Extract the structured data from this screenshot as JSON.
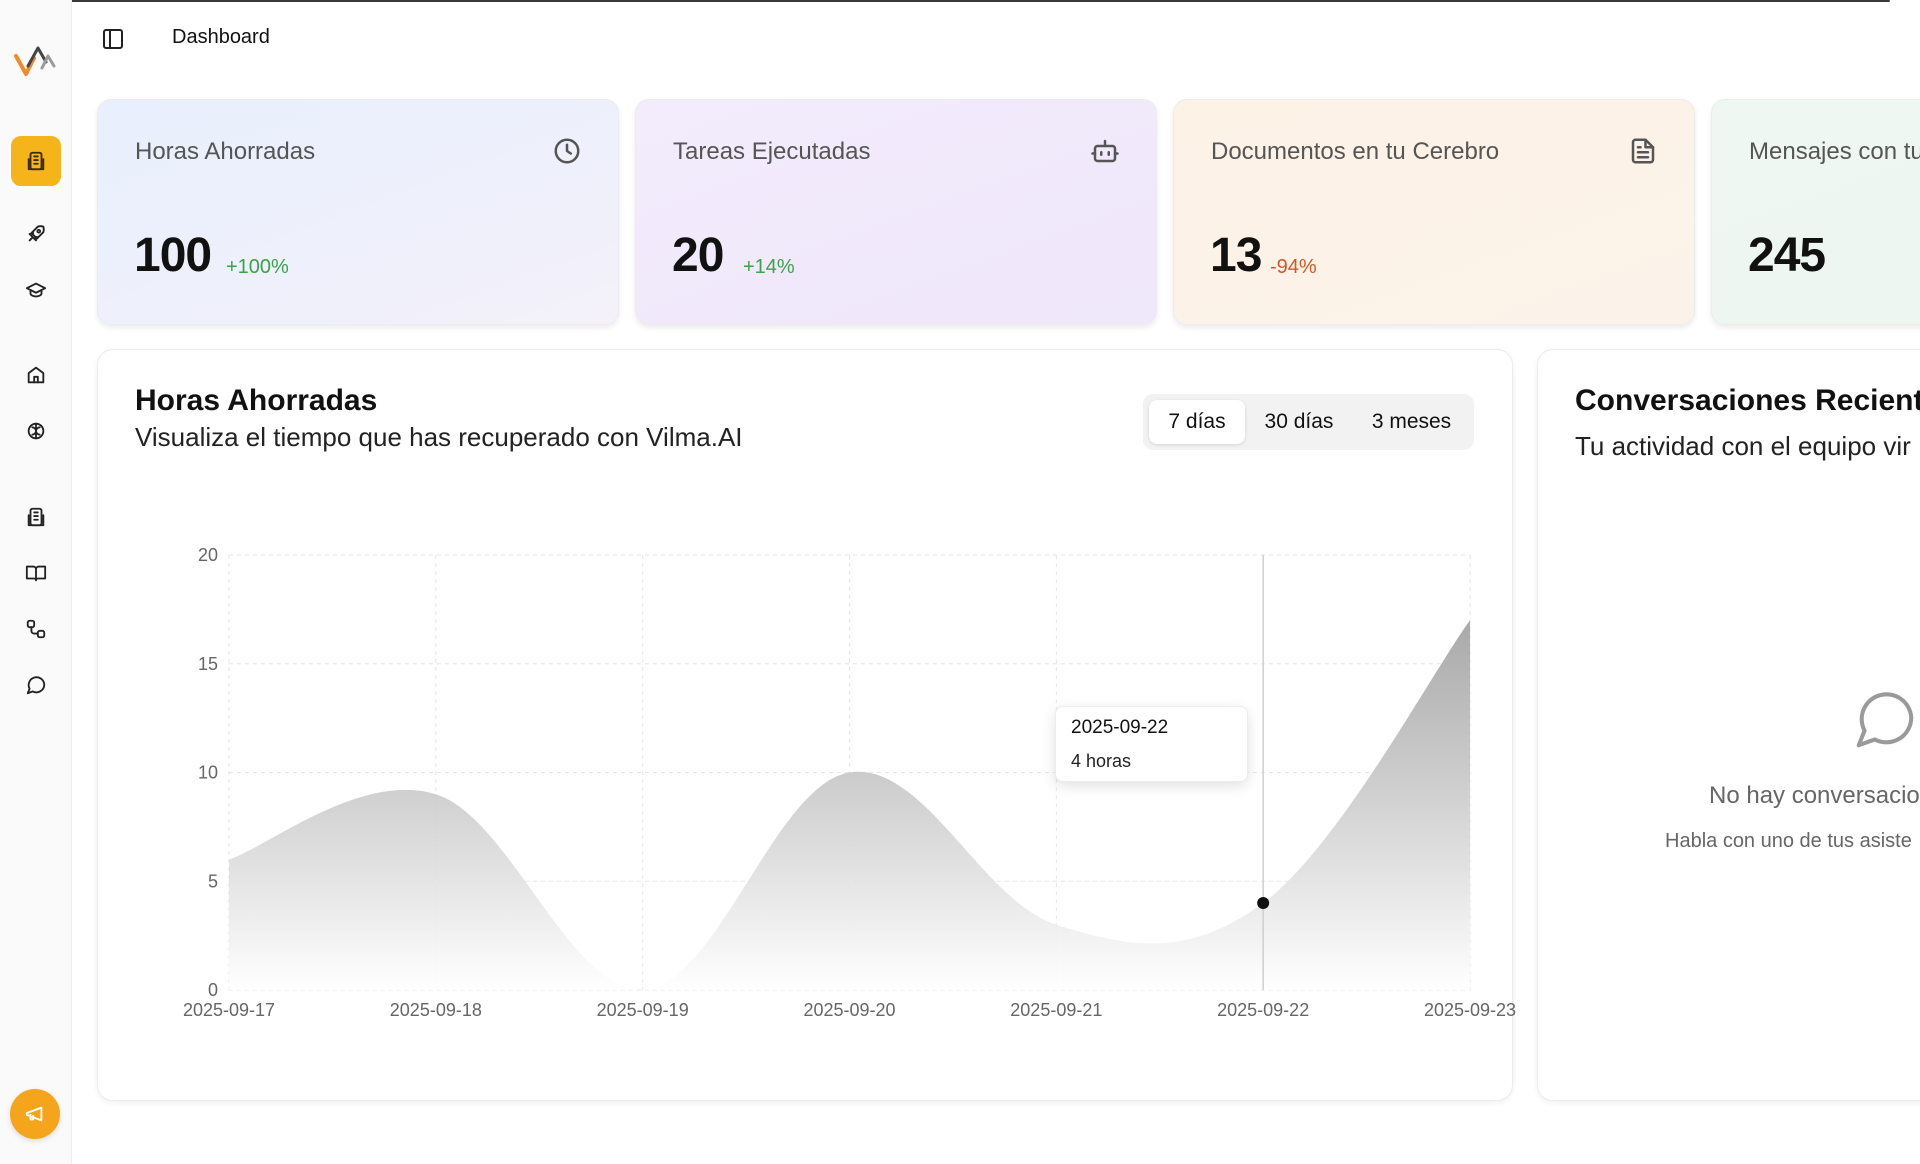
{
  "header": {
    "title": "Dashboard"
  },
  "sidebar": {
    "items": [
      {
        "icon": "building-icon",
        "active": true
      },
      {
        "icon": "rocket-icon"
      },
      {
        "icon": "graduation-cap-icon"
      },
      {
        "icon": "home-icon"
      },
      {
        "icon": "brain-icon"
      },
      {
        "icon": "building-icon"
      },
      {
        "icon": "book-open-icon"
      },
      {
        "icon": "workflow-icon"
      },
      {
        "icon": "message-circle-icon"
      }
    ],
    "accent": "#f4b41a",
    "fab_icon": "megaphone-icon"
  },
  "stats": [
    {
      "label": "Horas Ahorradas",
      "value": "100",
      "delta": "+100%",
      "icon": "clock-icon",
      "trend": "up"
    },
    {
      "label": "Tareas Ejecutadas",
      "value": "20",
      "delta": "+14%",
      "icon": "bot-icon",
      "trend": "up"
    },
    {
      "label": "Documentos en tu Cerebro",
      "value": "13",
      "delta": "-94%",
      "icon": "file-text-icon",
      "trend": "down"
    },
    {
      "label": "Mensajes con tu",
      "value": "245",
      "icon": "message-icon"
    }
  ],
  "chart_panel": {
    "title": "Horas Ahorradas",
    "subtitle": "Visualiza el tiempo que has recuperado con Vilma.AI",
    "ranges": [
      "7 días",
      "30 días",
      "3 meses"
    ],
    "selected_range": "7 días",
    "tooltip": {
      "date": "2025-09-22",
      "value": "4 horas"
    }
  },
  "chart_data": {
    "type": "area",
    "x": [
      "2025-09-17",
      "2025-09-18",
      "2025-09-19",
      "2025-09-20",
      "2025-09-21",
      "2025-09-22",
      "2025-09-23"
    ],
    "values": [
      6,
      9,
      0,
      10,
      3,
      4,
      17
    ],
    "ylim": [
      0,
      20
    ],
    "yticks": [
      0,
      5,
      10,
      15,
      20
    ],
    "grid": true,
    "highlight_index": 5
  },
  "conversations_panel": {
    "title": "Conversaciones Recientes",
    "subtitle": "Tu actividad con el equipo vir",
    "empty_title": "No hay conversacio",
    "empty_hint": "Habla con uno de tus asiste"
  }
}
